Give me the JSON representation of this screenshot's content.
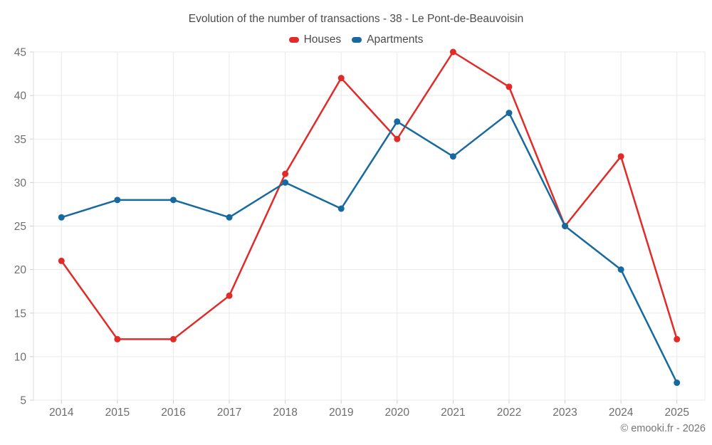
{
  "title": "Evolution of the number of transactions - 38 - Le Pont-de-Beauvoisin",
  "footer": "© emooki.fr - 2026",
  "chart_data": {
    "type": "line",
    "title": "Evolution of the number of transactions - 38 - Le Pont-de-Beauvoisin",
    "categories": [
      "2014",
      "2015",
      "2016",
      "2017",
      "2018",
      "2019",
      "2020",
      "2021",
      "2022",
      "2023",
      "2024",
      "2025"
    ],
    "series": [
      {
        "name": "Houses",
        "color": "#e12b28",
        "values": [
          21,
          12,
          12,
          17,
          31,
          42,
          35,
          45,
          41,
          25,
          33,
          12
        ]
      },
      {
        "name": "Apartments",
        "color": "#166aa0",
        "values": [
          26,
          28,
          28,
          26,
          30,
          27,
          37,
          33,
          38,
          25,
          20,
          7
        ]
      }
    ],
    "xlabel": "",
    "ylabel": "",
    "ylim": [
      5,
      45
    ],
    "ytick_step": 5,
    "grid": true,
    "legend_position": "top-center",
    "marker": "circle"
  },
  "colors": {
    "background": "#ffffff",
    "grid": "#e9e9e9",
    "axis_line": "#dcdcdc",
    "tick": "#cfcfcf",
    "axis_text": "#6e6e6e",
    "title_text": "#4b4b4b",
    "legend_text": "#4b4b4b",
    "footer_text": "#757575"
  }
}
